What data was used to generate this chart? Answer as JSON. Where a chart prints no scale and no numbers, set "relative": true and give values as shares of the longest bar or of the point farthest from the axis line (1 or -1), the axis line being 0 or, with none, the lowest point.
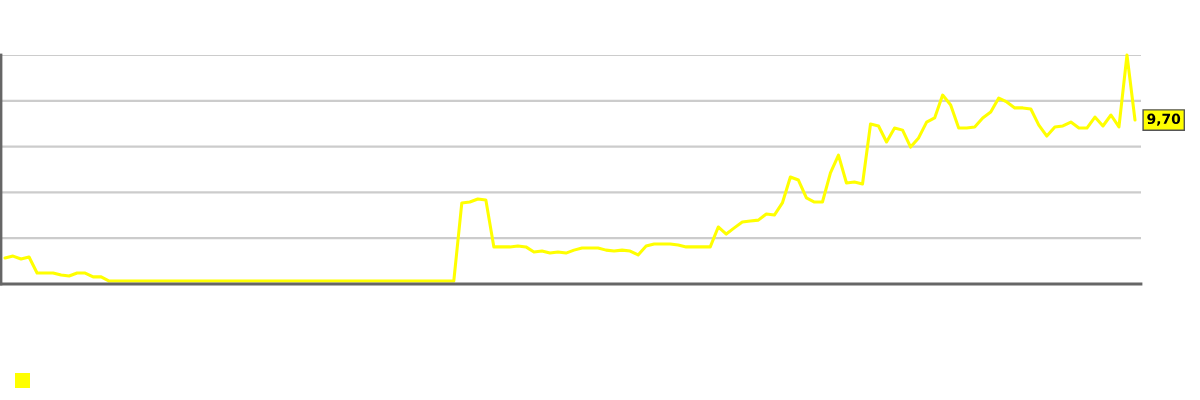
{
  "chart_data": {
    "type": "line",
    "relative": true,
    "grid": "y",
    "line_style": "solid",
    "categories": [
      null,
      null,
      null,
      null,
      null,
      null,
      null,
      null,
      null,
      null,
      null,
      null,
      null,
      null,
      null,
      null,
      null,
      null,
      null,
      null,
      null,
      null,
      null,
      null,
      null,
      null,
      null,
      null,
      null,
      null,
      null,
      null,
      null,
      null,
      null,
      null,
      null,
      null,
      null,
      null,
      null,
      null,
      null,
      null,
      null,
      null,
      null,
      null,
      null,
      null,
      null,
      null,
      null,
      null,
      null,
      null,
      null,
      null,
      null,
      null,
      null,
      null,
      null,
      null,
      null,
      null,
      null,
      null,
      null,
      null,
      null,
      null,
      null,
      null,
      null,
      null,
      null,
      null,
      null,
      null,
      null,
      null,
      null,
      null,
      null,
      null,
      null,
      null,
      null,
      null,
      null,
      null,
      null,
      null,
      null,
      null,
      null,
      null,
      null,
      null,
      null,
      null,
      null,
      null,
      null,
      null,
      null,
      null,
      null,
      null,
      null,
      null,
      null,
      null,
      null,
      null,
      null,
      null,
      null,
      null,
      null,
      null,
      null,
      null,
      null,
      null,
      null,
      null,
      null,
      null,
      null,
      null,
      null,
      null,
      null,
      null,
      null,
      null,
      null,
      null,
      null,
      null
    ],
    "series": [
      {
        "color": "#ffff00",
        "values": [
          0.114,
          0.122,
          0.109,
          0.118,
          0.048,
          0.048,
          0.048,
          0.039,
          0.035,
          0.048,
          0.048,
          0.031,
          0.031,
          0.013,
          0.013,
          0.013,
          0.013,
          0.013,
          0.013,
          0.013,
          0.013,
          0.013,
          0.013,
          0.013,
          0.013,
          0.013,
          0.013,
          0.013,
          0.013,
          0.013,
          0.013,
          0.013,
          0.013,
          0.013,
          0.013,
          0.013,
          0.013,
          0.013,
          0.013,
          0.013,
          0.013,
          0.013,
          0.013,
          0.013,
          0.013,
          0.013,
          0.013,
          0.013,
          0.013,
          0.013,
          0.013,
          0.013,
          0.013,
          0.013,
          0.013,
          0.013,
          0.013,
          0.354,
          0.358,
          0.371,
          0.367,
          0.162,
          0.162,
          0.162,
          0.166,
          0.162,
          0.14,
          0.144,
          0.135,
          0.14,
          0.135,
          0.148,
          0.157,
          0.157,
          0.157,
          0.148,
          0.144,
          0.148,
          0.144,
          0.127,
          0.166,
          0.175,
          0.175,
          0.175,
          0.17,
          0.162,
          0.162,
          0.162,
          0.162,
          0.249,
          0.218,
          0.245,
          0.271,
          0.275,
          0.279,
          0.306,
          0.301,
          0.354,
          0.467,
          0.454,
          0.376,
          0.358,
          0.358,
          0.485,
          0.563,
          0.441,
          0.445,
          0.437,
          0.699,
          0.69,
          0.62,
          0.681,
          0.672,
          0.598,
          0.638,
          0.707,
          0.725,
          0.825,
          0.782,
          0.681,
          0.681,
          0.686,
          0.725,
          0.751,
          0.812,
          0.795,
          0.769,
          0.769,
          0.764,
          0.694,
          0.646,
          0.686,
          0.69,
          0.707,
          0.681,
          0.681,
          0.729,
          0.69,
          0.738,
          0.686,
          1,
          0.716
        ]
      }
    ],
    "annotations": [
      {
        "text": "9,70",
        "y": 0.716
      }
    ]
  }
}
